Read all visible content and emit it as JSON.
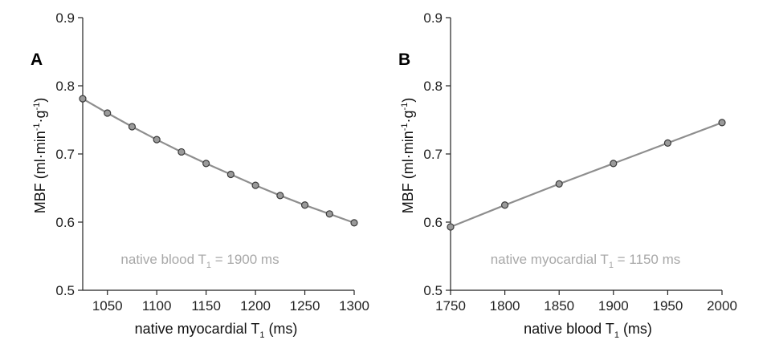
{
  "chart_data": [
    {
      "panel": "A",
      "type": "line",
      "x": [
        1025,
        1050,
        1075,
        1100,
        1125,
        1150,
        1175,
        1200,
        1225,
        1250,
        1275,
        1300
      ],
      "y": [
        0.781,
        0.76,
        0.74,
        0.721,
        0.703,
        0.686,
        0.67,
        0.654,
        0.639,
        0.625,
        0.612,
        0.599
      ],
      "xlim": [
        1025,
        1300
      ],
      "ylim": [
        0.5,
        0.9
      ],
      "xticks": [
        1050,
        1100,
        1150,
        1200,
        1250,
        1300
      ],
      "yticks": [
        "0.5",
        "0.6",
        "0.7",
        "0.8",
        "0.9"
      ],
      "xlabel": {
        "main": "native myocardial T",
        "sub": "1",
        "tail": " (ms)"
      },
      "ylabel": {
        "prefix": "MBF (ml·min",
        "sup1": "-1",
        "mid": "·g",
        "sup2": "-1",
        "suffix": ")"
      },
      "annotation": {
        "main": "native blood T",
        "sub": "1",
        "tail": " = 1900 ms"
      },
      "grid": false
    },
    {
      "panel": "B",
      "type": "line",
      "x": [
        1750,
        1800,
        1850,
        1900,
        1950,
        2000
      ],
      "y": [
        0.593,
        0.625,
        0.656,
        0.686,
        0.716,
        0.746
      ],
      "xlim": [
        1750,
        2000
      ],
      "ylim": [
        0.5,
        0.9
      ],
      "xticks": [
        1750,
        1800,
        1850,
        1900,
        1950,
        2000
      ],
      "yticks": [
        "0.5",
        "0.6",
        "0.7",
        "0.8",
        "0.9"
      ],
      "xlabel": {
        "main": "native blood T",
        "sub": "1",
        "tail": " (ms)"
      },
      "ylabel": {
        "prefix": "MBF (ml·min",
        "sup1": "-1",
        "mid": "·g",
        "sup2": "-1",
        "suffix": ")"
      },
      "annotation": {
        "main": "native myocardial T",
        "sub": "1",
        "tail": " = 1150 ms"
      },
      "grid": false
    }
  ],
  "colors": {
    "line": "#8e8e8e",
    "marker_fill": "#9a9a9a",
    "marker_edge": "#3a3a3a",
    "annotation": "#a8a8a8",
    "axis": "#222222"
  }
}
